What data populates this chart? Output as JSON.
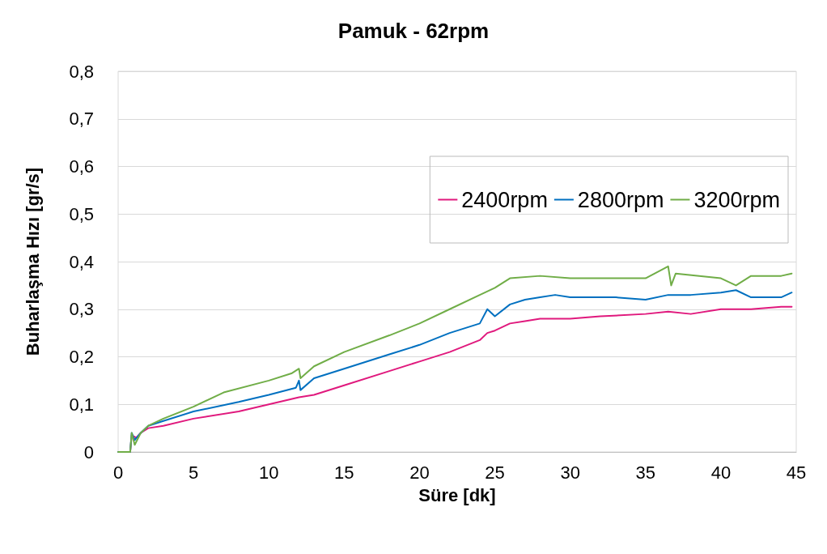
{
  "chart_data": {
    "type": "line",
    "title": "Pamuk - 62rpm",
    "xlabel": "Süre [dk]",
    "ylabel": "Buharlaşma Hızı [gr/s]",
    "xlim": [
      0,
      45
    ],
    "xticks": [
      0,
      5,
      10,
      15,
      20,
      25,
      30,
      35,
      40,
      45
    ],
    "ylim": [
      0,
      0.8
    ],
    "yticks": [
      {
        "value": 0,
        "label": "0"
      },
      {
        "value": 0.1,
        "label": "0,1"
      },
      {
        "value": 0.2,
        "label": "0,2"
      },
      {
        "value": 0.3,
        "label": "0,3"
      },
      {
        "value": 0.4,
        "label": "0,4"
      },
      {
        "value": 0.5,
        "label": "0,5"
      },
      {
        "value": 0.6,
        "label": "0,6"
      },
      {
        "value": 0.7,
        "label": "0,7"
      },
      {
        "value": 0.8,
        "label": "0,8"
      }
    ],
    "grid": "y",
    "legend": "top right",
    "marker": "none",
    "line_style": "solid",
    "series": [
      {
        "name": "2400rpm",
        "color": "#e0197d",
        "x": [
          0,
          0.8,
          0.9,
          1.2,
          1.5,
          2,
          3,
          5,
          8,
          10,
          12,
          13,
          15,
          18,
          20,
          22,
          24,
          24.5,
          25,
          26,
          27,
          28,
          30,
          32,
          35,
          36.5,
          38,
          40,
          42,
          44,
          44.7
        ],
        "values": [
          0,
          0,
          0.035,
          0.03,
          0.04,
          0.05,
          0.055,
          0.07,
          0.085,
          0.1,
          0.115,
          0.12,
          0.14,
          0.17,
          0.19,
          0.21,
          0.235,
          0.25,
          0.255,
          0.27,
          0.275,
          0.28,
          0.28,
          0.285,
          0.29,
          0.295,
          0.29,
          0.3,
          0.3,
          0.305,
          0.305
        ]
      },
      {
        "name": "2800rpm",
        "color": "#0070c0",
        "x": [
          0,
          0.8,
          0.9,
          1.1,
          1.5,
          2,
          3,
          5,
          8,
          10,
          11.8,
          12,
          12.1,
          13,
          15,
          18,
          20,
          22,
          24,
          24.5,
          25,
          26,
          27,
          28,
          29,
          30,
          33,
          35,
          36.5,
          38,
          40,
          41,
          42,
          44,
          44.7
        ],
        "values": [
          0,
          0,
          0.04,
          0.025,
          0.04,
          0.055,
          0.065,
          0.085,
          0.105,
          0.12,
          0.135,
          0.15,
          0.13,
          0.155,
          0.175,
          0.205,
          0.225,
          0.25,
          0.27,
          0.3,
          0.285,
          0.31,
          0.32,
          0.325,
          0.33,
          0.325,
          0.325,
          0.32,
          0.33,
          0.33,
          0.335,
          0.34,
          0.325,
          0.325,
          0.335
        ]
      },
      {
        "name": "3200rpm",
        "color": "#70ad47",
        "x": [
          0,
          0.8,
          0.9,
          1.1,
          1.5,
          2,
          3,
          5,
          7,
          10,
          11.5,
          12,
          12.1,
          13,
          15,
          18,
          20,
          22,
          24,
          25,
          26,
          28,
          30,
          33,
          35,
          36.5,
          36.7,
          37,
          40,
          41,
          42,
          44,
          44.7
        ],
        "values": [
          0,
          0,
          0.04,
          0.015,
          0.04,
          0.055,
          0.07,
          0.095,
          0.125,
          0.15,
          0.165,
          0.175,
          0.155,
          0.18,
          0.21,
          0.245,
          0.27,
          0.3,
          0.33,
          0.345,
          0.365,
          0.37,
          0.365,
          0.365,
          0.365,
          0.39,
          0.35,
          0.375,
          0.365,
          0.35,
          0.37,
          0.37,
          0.375
        ]
      }
    ]
  }
}
